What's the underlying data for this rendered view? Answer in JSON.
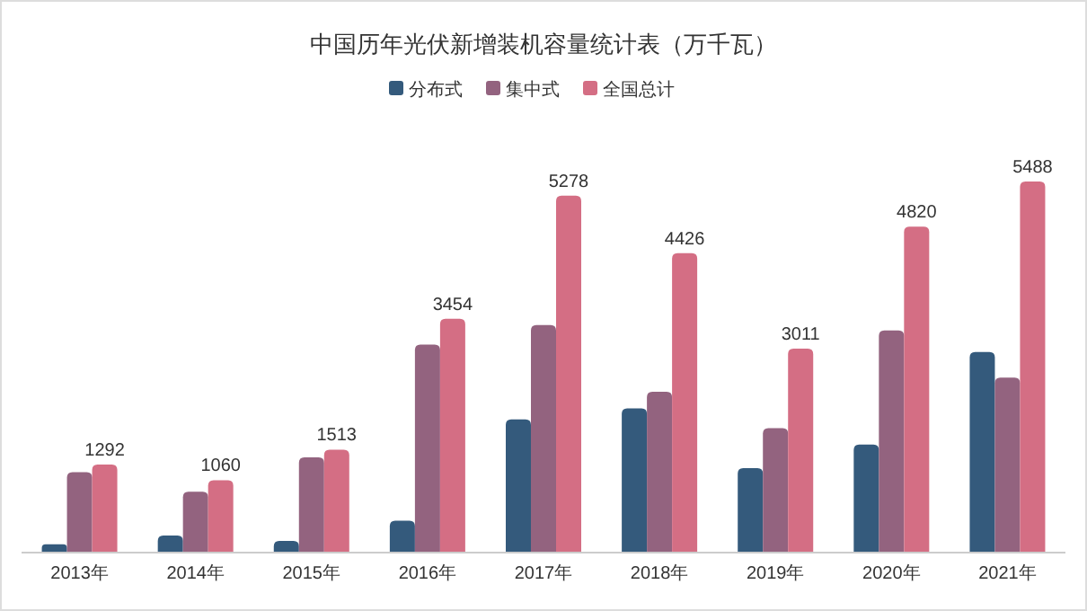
{
  "chart_data": {
    "type": "bar",
    "title": "中国历年光伏新增装机容量统计表（万千瓦）",
    "categories": [
      "2013年",
      "2014年",
      "2015年",
      "2016年",
      "2017年",
      "2018年",
      "2019年",
      "2020年",
      "2021年"
    ],
    "series": [
      {
        "name": "分布式",
        "color": "#345a7c",
        "values": [
          110,
          240,
          160,
          460,
          1960,
          2125,
          1240,
          1590,
          2960
        ]
      },
      {
        "name": "集中式",
        "color": "#93637f",
        "values": [
          1180,
          890,
          1400,
          3070,
          3360,
          2370,
          1830,
          3280,
          2580
        ]
      },
      {
        "name": "全国总计",
        "color": "#d46e84",
        "values": [
          1292,
          1060,
          1513,
          3454,
          5278,
          4426,
          3011,
          4820,
          5488
        ],
        "value_labels": [
          "1292",
          "1060",
          "1513",
          "3454",
          "5278",
          "4426",
          "3011",
          "4820",
          "5488"
        ]
      }
    ],
    "legend": "top"
  }
}
